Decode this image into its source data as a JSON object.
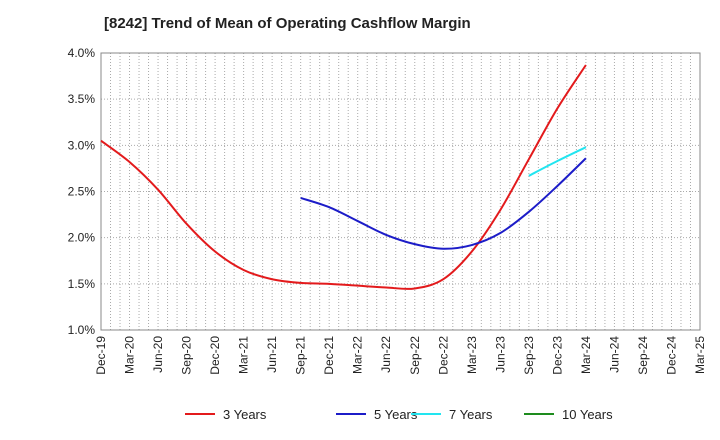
{
  "chart_data": {
    "type": "line",
    "title": "[8242]  Trend of Mean of Operating Cashflow Margin",
    "xlabel": "",
    "ylabel": "",
    "x_ticks": [
      "Dec-19",
      "Mar-20",
      "Jun-20",
      "Sep-20",
      "Dec-20",
      "Mar-21",
      "Jun-21",
      "Sep-21",
      "Dec-21",
      "Mar-22",
      "Jun-22",
      "Sep-22",
      "Dec-22",
      "Mar-23",
      "Jun-23",
      "Sep-23",
      "Dec-23",
      "Mar-24",
      "Jun-24",
      "Sep-24",
      "Dec-24",
      "Mar-25"
    ],
    "y_ticks": [
      "1.0%",
      "1.5%",
      "2.0%",
      "2.5%",
      "3.0%",
      "3.5%",
      "4.0%"
    ],
    "ylim": [
      1.0,
      4.0
    ],
    "grid": true,
    "legend_position": "bottom",
    "series": [
      {
        "name": "3 Years",
        "color": "#e31a1c",
        "points": [
          [
            "Dec-19",
            3.05
          ],
          [
            "Mar-20",
            2.82
          ],
          [
            "Jun-20",
            2.52
          ],
          [
            "Sep-20",
            2.15
          ],
          [
            "Dec-20",
            1.85
          ],
          [
            "Mar-21",
            1.65
          ],
          [
            "Jun-21",
            1.55
          ],
          [
            "Sep-21",
            1.51
          ],
          [
            "Dec-21",
            1.5
          ],
          [
            "Mar-22",
            1.48
          ],
          [
            "Jun-22",
            1.46
          ],
          [
            "Sep-22",
            1.45
          ],
          [
            "Dec-22",
            1.55
          ],
          [
            "Mar-23",
            1.85
          ],
          [
            "Jun-23",
            2.3
          ],
          [
            "Sep-23",
            2.85
          ],
          [
            "Dec-23",
            3.4
          ],
          [
            "Mar-24",
            3.87
          ]
        ]
      },
      {
        "name": "5 Years",
        "color": "#1c1cc8",
        "points": [
          [
            "Sep-21",
            2.43
          ],
          [
            "Dec-21",
            2.33
          ],
          [
            "Mar-22",
            2.18
          ],
          [
            "Jun-22",
            2.03
          ],
          [
            "Sep-22",
            1.93
          ],
          [
            "Dec-22",
            1.88
          ],
          [
            "Mar-23",
            1.92
          ],
          [
            "Jun-23",
            2.05
          ],
          [
            "Sep-23",
            2.28
          ],
          [
            "Dec-23",
            2.56
          ],
          [
            "Mar-24",
            2.86
          ]
        ]
      },
      {
        "name": "7 Years",
        "color": "#22e5f0",
        "points": [
          [
            "Sep-23",
            2.67
          ],
          [
            "Dec-23",
            2.83
          ],
          [
            "Mar-24",
            2.98
          ]
        ]
      },
      {
        "name": "10 Years",
        "color": "#1e8c1e",
        "points": []
      }
    ]
  }
}
